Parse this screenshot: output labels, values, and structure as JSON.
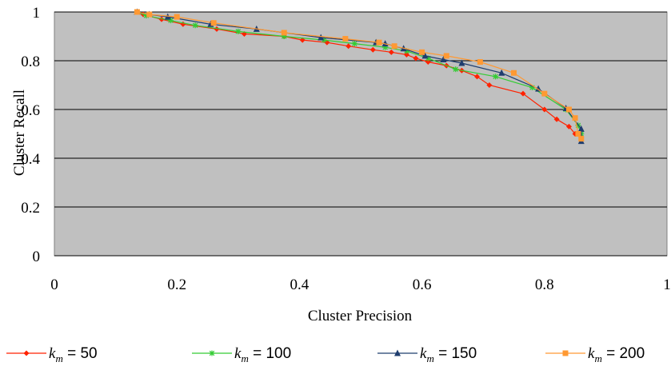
{
  "chart_data": {
    "type": "line",
    "xlabel": "Cluster Precision",
    "ylabel": "Cluster Recall",
    "xlim": [
      0,
      1
    ],
    "ylim": [
      0,
      1
    ],
    "x_ticks": [
      "0",
      "0.2",
      "0.4",
      "0.6",
      "0.8",
      "1"
    ],
    "y_ticks": [
      "0",
      "0.2",
      "0.4",
      "0.6",
      "0.8",
      "1"
    ],
    "grid": "horizontal",
    "plot_background": "#c0c0c0",
    "legend_position": "bottom",
    "series": [
      {
        "name": "k_m = 50",
        "legend_sym": "k",
        "legend_sub": "m",
        "legend_val": " = 50",
        "color": "#ff2200",
        "marker": "diamond",
        "points": [
          [
            0.135,
            1.0
          ],
          [
            0.145,
            0.99
          ],
          [
            0.175,
            0.97
          ],
          [
            0.21,
            0.95
          ],
          [
            0.265,
            0.93
          ],
          [
            0.31,
            0.91
          ],
          [
            0.375,
            0.9
          ],
          [
            0.405,
            0.885
          ],
          [
            0.445,
            0.875
          ],
          [
            0.48,
            0.86
          ],
          [
            0.52,
            0.845
          ],
          [
            0.55,
            0.835
          ],
          [
            0.575,
            0.825
          ],
          [
            0.59,
            0.81
          ],
          [
            0.61,
            0.795
          ],
          [
            0.64,
            0.78
          ],
          [
            0.665,
            0.76
          ],
          [
            0.69,
            0.735
          ],
          [
            0.71,
            0.7
          ],
          [
            0.765,
            0.665
          ],
          [
            0.8,
            0.6
          ],
          [
            0.82,
            0.56
          ],
          [
            0.84,
            0.53
          ],
          [
            0.85,
            0.5
          ],
          [
            0.86,
            0.485
          ]
        ]
      },
      {
        "name": "k_m = 100",
        "legend_sym": "k",
        "legend_sub": "m",
        "legend_val": " = 100",
        "color": "#33cc33",
        "marker": "star",
        "points": [
          [
            0.135,
            1.0
          ],
          [
            0.15,
            0.985
          ],
          [
            0.19,
            0.965
          ],
          [
            0.23,
            0.945
          ],
          [
            0.3,
            0.92
          ],
          [
            0.375,
            0.9
          ],
          [
            0.44,
            0.885
          ],
          [
            0.49,
            0.87
          ],
          [
            0.54,
            0.855
          ],
          [
            0.575,
            0.84
          ],
          [
            0.61,
            0.81
          ],
          [
            0.655,
            0.765
          ],
          [
            0.72,
            0.735
          ],
          [
            0.78,
            0.69
          ],
          [
            0.835,
            0.6
          ],
          [
            0.855,
            0.535
          ],
          [
            0.86,
            0.5
          ]
        ]
      },
      {
        "name": "k_m = 150",
        "legend_sym": "k",
        "legend_sub": "m",
        "legend_val": " = 150",
        "color": "#1f3d6e",
        "marker": "triangle",
        "points": [
          [
            0.135,
            1.0
          ],
          [
            0.155,
            0.99
          ],
          [
            0.185,
            0.98
          ],
          [
            0.255,
            0.95
          ],
          [
            0.33,
            0.93
          ],
          [
            0.435,
            0.895
          ],
          [
            0.525,
            0.875
          ],
          [
            0.54,
            0.87
          ],
          [
            0.57,
            0.85
          ],
          [
            0.605,
            0.82
          ],
          [
            0.635,
            0.805
          ],
          [
            0.665,
            0.79
          ],
          [
            0.73,
            0.75
          ],
          [
            0.79,
            0.685
          ],
          [
            0.835,
            0.605
          ],
          [
            0.86,
            0.52
          ],
          [
            0.86,
            0.47
          ]
        ]
      },
      {
        "name": "k_m = 200",
        "legend_sym": "k",
        "legend_sub": "m",
        "legend_val": " = 200",
        "color": "#ff9933",
        "marker": "square",
        "points": [
          [
            0.135,
            1.0
          ],
          [
            0.155,
            0.99
          ],
          [
            0.2,
            0.98
          ],
          [
            0.26,
            0.955
          ],
          [
            0.375,
            0.915
          ],
          [
            0.475,
            0.89
          ],
          [
            0.53,
            0.875
          ],
          [
            0.555,
            0.86
          ],
          [
            0.6,
            0.835
          ],
          [
            0.64,
            0.82
          ],
          [
            0.695,
            0.795
          ],
          [
            0.75,
            0.75
          ],
          [
            0.8,
            0.665
          ],
          [
            0.84,
            0.6
          ],
          [
            0.85,
            0.565
          ],
          [
            0.855,
            0.5
          ],
          [
            0.86,
            0.48
          ]
        ]
      }
    ]
  }
}
